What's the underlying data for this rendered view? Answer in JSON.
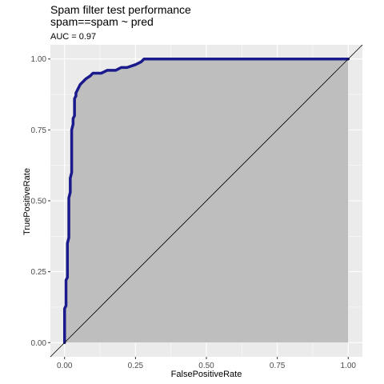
{
  "chart_data": {
    "type": "area",
    "title": "Spam filter test performance",
    "subtitle": "spam==spam ~ pred",
    "annotation": "AUC = 0.97",
    "xlabel": "FalsePositiveRate",
    "ylabel": "TruePositiveRate",
    "xlim": [
      -0.05,
      1.05
    ],
    "ylim": [
      -0.05,
      1.05
    ],
    "x_ticks": [
      0,
      0.25,
      0.5,
      0.75,
      1
    ],
    "x_tick_labels": [
      "0.00",
      "0.25",
      "0.50",
      "0.75",
      "1.00"
    ],
    "y_ticks": [
      0,
      0.25,
      0.5,
      0.75,
      1
    ],
    "y_tick_labels": [
      "0.00",
      "0.25",
      "0.50",
      "0.75",
      "1.00"
    ],
    "grid": true,
    "series": [
      {
        "x": [
          0,
          0,
          0.005,
          0.005,
          0.01,
          0.01,
          0.015,
          0.015,
          0.02,
          0.02,
          0.025,
          0.025,
          0.03,
          0.03,
          0.035,
          0.035,
          0.04,
          0.04,
          0.045,
          0.05,
          0.055,
          0.065,
          0.075,
          0.09,
          0.1,
          0.13,
          0.15,
          0.18,
          0.2,
          0.22,
          0.25,
          0.27,
          0.28,
          0.3,
          0.35,
          0.45,
          0.6,
          0.75,
          0.8,
          1
        ],
        "y": [
          0,
          0.12,
          0.13,
          0.22,
          0.23,
          0.35,
          0.37,
          0.51,
          0.53,
          0.58,
          0.6,
          0.75,
          0.77,
          0.79,
          0.8,
          0.86,
          0.87,
          0.88,
          0.89,
          0.9,
          0.91,
          0.92,
          0.93,
          0.94,
          0.95,
          0.95,
          0.96,
          0.96,
          0.97,
          0.97,
          0.98,
          0.99,
          1,
          1,
          1,
          1,
          1,
          1,
          1,
          1
        ]
      }
    ],
    "reference_line": {
      "x": [
        0,
        1
      ],
      "y": [
        0,
        1
      ]
    },
    "colors": {
      "curve": "#1a1a8c",
      "area": "#bebebe",
      "panel": "#ebebeb",
      "grid": "#ffffff",
      "diagonal": "#000000"
    }
  }
}
